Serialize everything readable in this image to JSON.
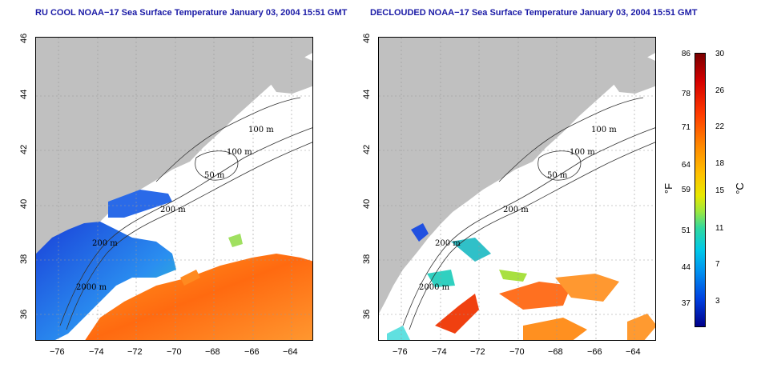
{
  "titles": {
    "left": "RU COOL NOAA−17 Sea Surface Temperature January 03, 2004 15:51 GMT",
    "right": "DECLOUDED NOAA−17 Sea Surface Temperature January 03, 2004 15:51 GMT"
  },
  "axes": {
    "lat_ticks": [
      "46",
      "44",
      "42",
      "40",
      "38",
      "36"
    ],
    "lon_ticks": [
      "−76",
      "−74",
      "−72",
      "−70",
      "−68",
      "−66",
      "−64"
    ]
  },
  "contours": {
    "labels": [
      "100 m",
      "100 m",
      "50 m",
      "200 m",
      "200 m",
      "2000 m"
    ]
  },
  "colorbar": {
    "fahrenheit_ticks": [
      "86",
      "78",
      "71",
      "64",
      "59",
      "51",
      "44",
      "37"
    ],
    "celsius_ticks": [
      "30",
      "26",
      "22",
      "18",
      "15",
      "11",
      "7",
      "3"
    ],
    "unit_f": "°F",
    "unit_c": "°C"
  },
  "colors": {
    "land": "#c0c0c0",
    "title": "#1a1aa6",
    "warm": "#f08a20",
    "cool": "#2060e0"
  }
}
